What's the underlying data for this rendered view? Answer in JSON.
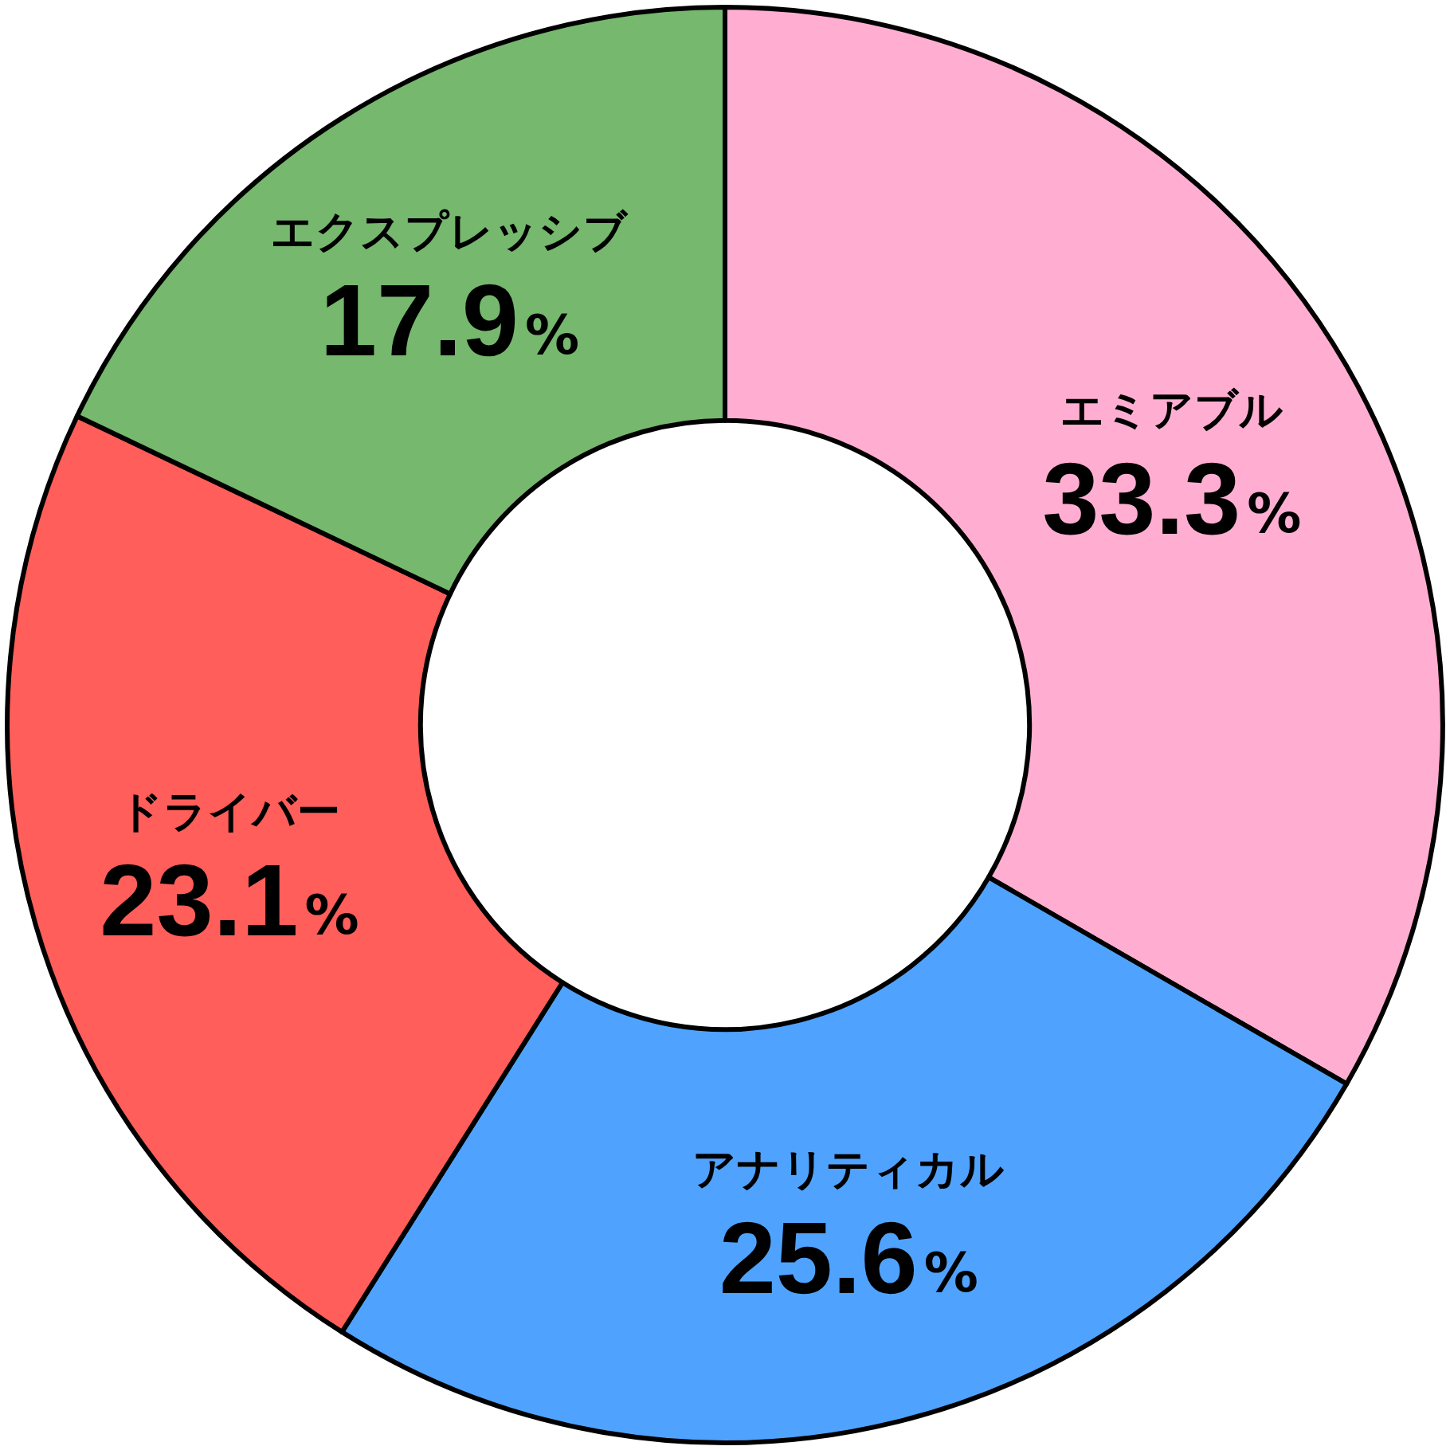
{
  "chart_data": {
    "type": "donut",
    "categories": [
      "エミアブル",
      "アナリティカル",
      "ドライバー",
      "エクスプレッシブ"
    ],
    "values": [
      33.3,
      25.6,
      23.1,
      17.9
    ],
    "colors": [
      "#ffaed2",
      "#4fa3ff",
      "#ff5e5a",
      "#76b86e"
    ],
    "value_labels": [
      "33.3%",
      "25.6%",
      "23.1%",
      "17.9%"
    ],
    "legend": false
  }
}
